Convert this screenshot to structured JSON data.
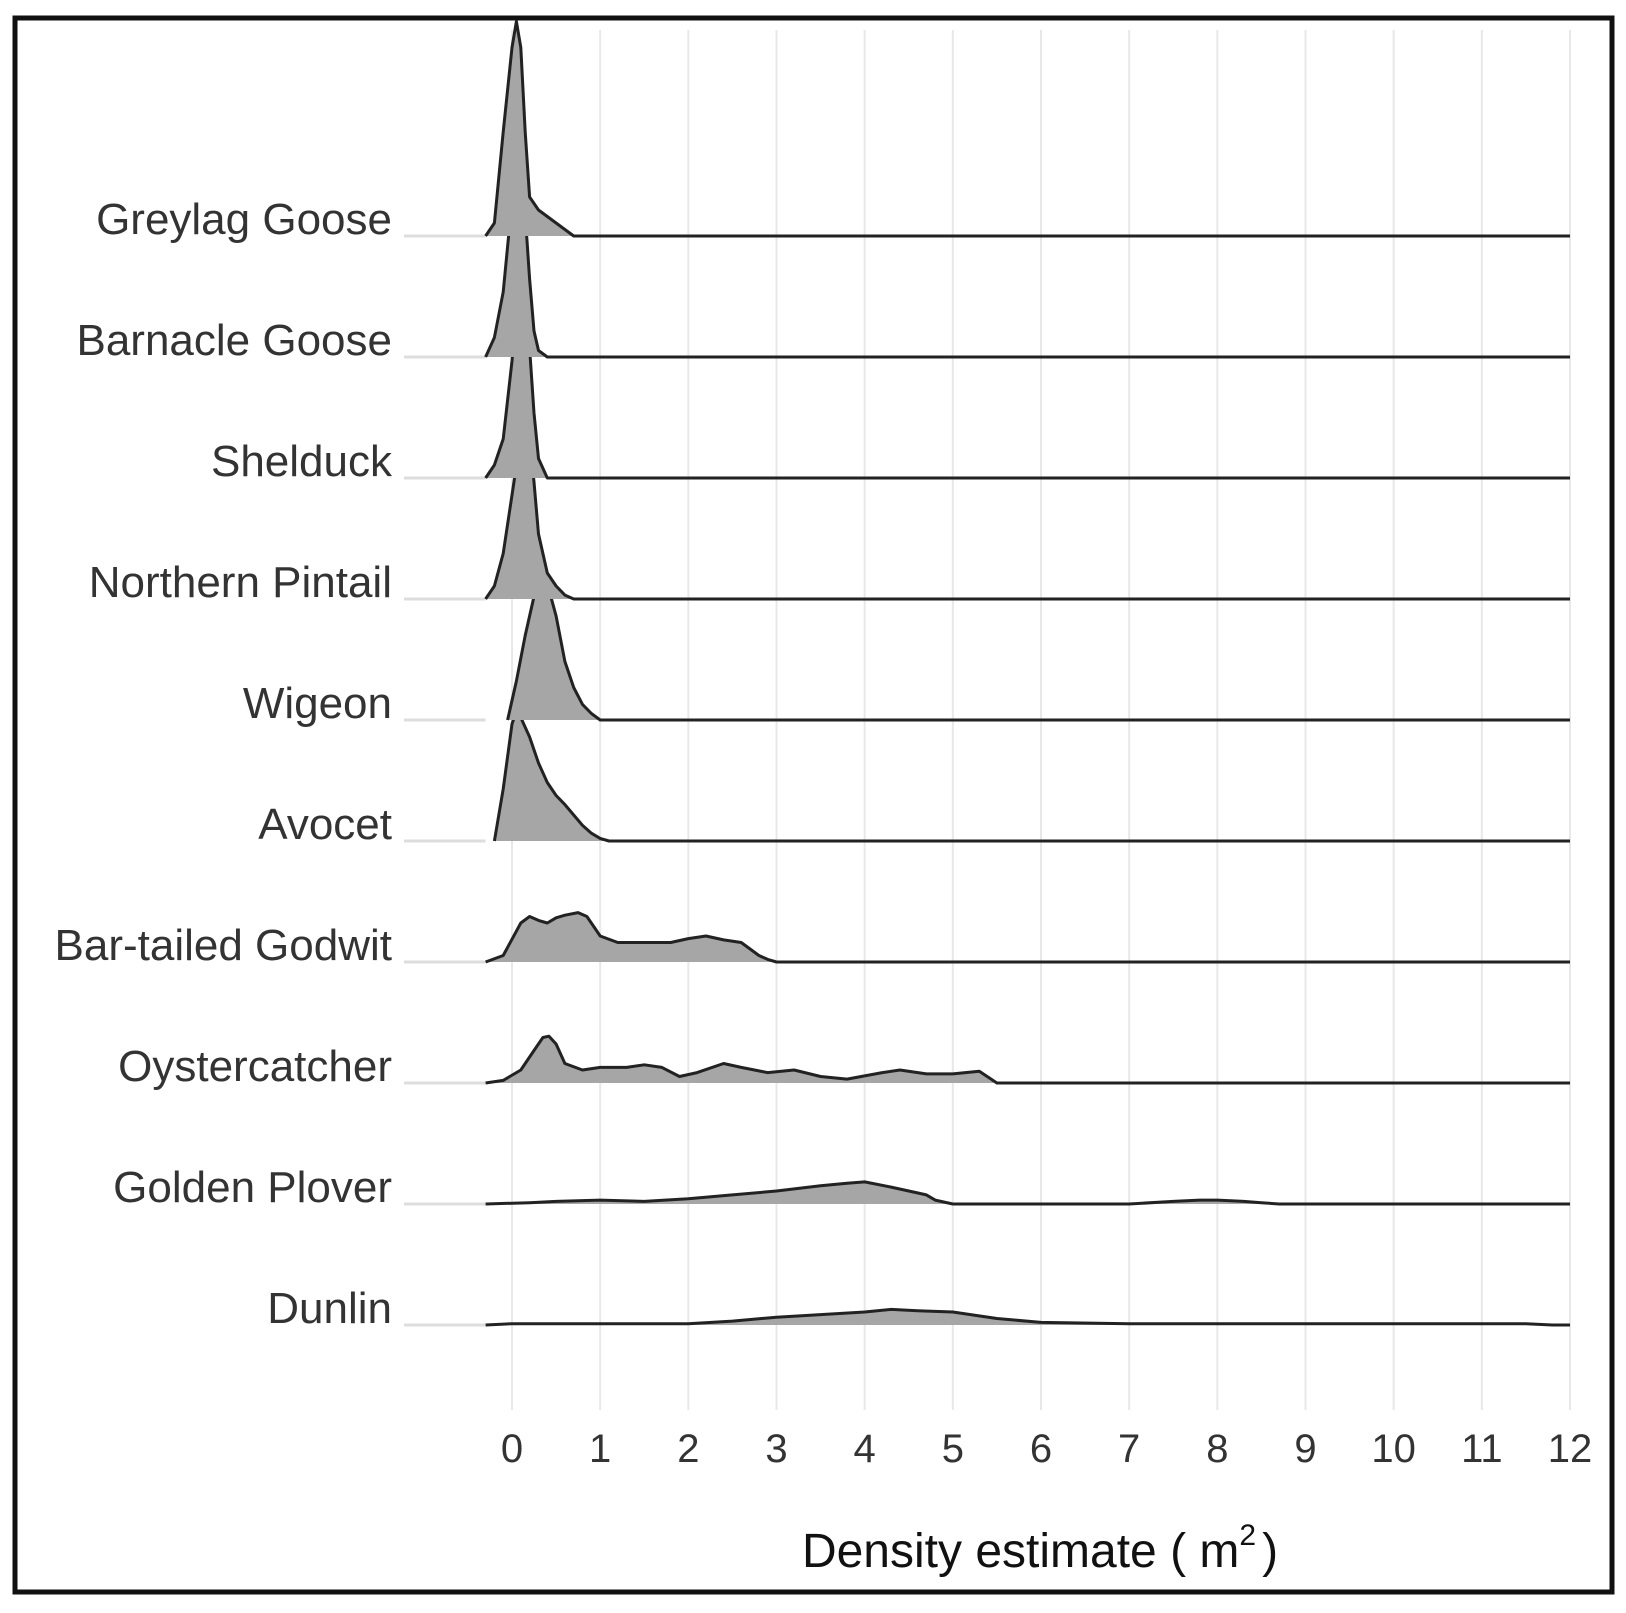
{
  "chart_data": {
    "type": "area",
    "subtype": "ridgeline",
    "title": "",
    "xlabel": "Density estimate ( m",
    "xlabel_superscript": "2",
    "xlabel_close": ")",
    "ylabel": "",
    "xlim": [
      -0.3,
      12
    ],
    "x_ticks": [
      0,
      1,
      2,
      3,
      4,
      5,
      6,
      7,
      8,
      9,
      10,
      11,
      12
    ],
    "x_tick_labels": [
      "0",
      "1",
      "2",
      "3",
      "4",
      "5",
      "6",
      "7",
      "8",
      "9",
      "10",
      "11",
      "12"
    ],
    "grid": "vertical",
    "legend": "none",
    "colors": {
      "fill": "#a6a6a6",
      "line": "#222222",
      "grid": "#e8e8e8",
      "baseline_left": "#dddddd",
      "frame": "#111111"
    },
    "categories": [
      "Greylag Goose",
      "Barnacle Goose",
      "Shelduck",
      "Northern Pintail",
      "Wigeon",
      "Avocet",
      "Bar-tailed Godwit",
      "Oystercatcher",
      "Golden Plover",
      "Dunlin"
    ],
    "series": [
      {
        "name": "Greylag Goose",
        "x": [
          -0.3,
          -0.2,
          -0.1,
          0.0,
          0.05,
          0.1,
          0.15,
          0.2,
          0.3,
          0.4,
          0.5,
          0.6,
          0.7,
          12
        ],
        "density": [
          0,
          0.1,
          0.8,
          1.45,
          1.65,
          1.45,
          0.8,
          0.3,
          0.2,
          0.15,
          0.1,
          0.05,
          0,
          0
        ]
      },
      {
        "name": "Barnacle Goose",
        "x": [
          -0.3,
          -0.2,
          -0.1,
          0.0,
          0.05,
          0.1,
          0.15,
          0.2,
          0.25,
          0.3,
          0.4,
          12
        ],
        "density": [
          0,
          0.15,
          0.5,
          1.2,
          1.55,
          1.45,
          1.1,
          0.6,
          0.2,
          0.05,
          0,
          0
        ]
      },
      {
        "name": "Shelduck",
        "x": [
          -0.3,
          -0.2,
          -0.1,
          0.0,
          0.05,
          0.12,
          0.2,
          0.25,
          0.3,
          0.4,
          12
        ],
        "density": [
          0,
          0.1,
          0.3,
          0.9,
          1.3,
          1.5,
          1.0,
          0.5,
          0.15,
          0,
          0
        ]
      },
      {
        "name": "Northern Pintail",
        "x": [
          -0.3,
          -0.2,
          -0.1,
          0.0,
          0.1,
          0.15,
          0.2,
          0.25,
          0.3,
          0.4,
          0.5,
          0.6,
          0.7,
          12
        ],
        "density": [
          0,
          0.1,
          0.35,
          0.8,
          1.25,
          1.35,
          1.25,
          0.9,
          0.5,
          0.2,
          0.1,
          0.03,
          0,
          0
        ]
      },
      {
        "name": "Wigeon",
        "x": [
          -0.05,
          0.05,
          0.15,
          0.25,
          0.3,
          0.35,
          0.4,
          0.5,
          0.6,
          0.7,
          0.8,
          0.9,
          1.0,
          12
        ],
        "density": [
          0,
          0.3,
          0.65,
          0.95,
          1.05,
          1.1,
          1.05,
          0.8,
          0.45,
          0.25,
          0.12,
          0.05,
          0,
          0
        ]
      },
      {
        "name": "Avocet",
        "x": [
          -0.2,
          -0.1,
          0.0,
          0.05,
          0.1,
          0.2,
          0.3,
          0.4,
          0.5,
          0.6,
          0.7,
          0.8,
          0.9,
          1.0,
          1.1,
          12
        ],
        "density": [
          0,
          0.4,
          0.9,
          1.0,
          0.95,
          0.8,
          0.6,
          0.45,
          0.35,
          0.28,
          0.2,
          0.12,
          0.06,
          0.02,
          0,
          0
        ]
      },
      {
        "name": "Bar-tailed Godwit",
        "x": [
          -0.3,
          -0.1,
          0.1,
          0.2,
          0.3,
          0.4,
          0.5,
          0.6,
          0.75,
          0.85,
          1.0,
          1.2,
          1.5,
          1.8,
          2.0,
          2.2,
          2.4,
          2.6,
          2.7,
          2.8,
          2.9,
          3.0,
          12
        ],
        "density": [
          0,
          0.05,
          0.3,
          0.35,
          0.32,
          0.3,
          0.34,
          0.36,
          0.38,
          0.35,
          0.2,
          0.15,
          0.15,
          0.15,
          0.18,
          0.2,
          0.17,
          0.15,
          0.1,
          0.05,
          0.02,
          0,
          0
        ]
      },
      {
        "name": "Oystercatcher",
        "x": [
          -0.3,
          -0.1,
          0.1,
          0.25,
          0.35,
          0.42,
          0.5,
          0.6,
          0.8,
          1.0,
          1.3,
          1.5,
          1.7,
          1.9,
          2.1,
          2.4,
          2.6,
          2.9,
          3.2,
          3.5,
          3.8,
          4.2,
          4.4,
          4.7,
          5.0,
          5.3,
          5.5,
          12
        ],
        "density": [
          0,
          0.02,
          0.1,
          0.25,
          0.35,
          0.36,
          0.3,
          0.15,
          0.1,
          0.12,
          0.12,
          0.14,
          0.12,
          0.05,
          0.08,
          0.15,
          0.12,
          0.08,
          0.1,
          0.05,
          0.03,
          0.08,
          0.1,
          0.07,
          0.07,
          0.09,
          0,
          0
        ]
      },
      {
        "name": "Golden Plover",
        "x": [
          -0.3,
          0.2,
          0.5,
          1.0,
          1.5,
          2.0,
          2.5,
          3.0,
          3.5,
          3.8,
          4.0,
          4.3,
          4.5,
          4.7,
          4.8,
          5.0,
          6.0,
          7.0,
          7.5,
          7.8,
          8.0,
          8.3,
          8.5,
          8.7,
          12
        ],
        "density": [
          0,
          0.01,
          0.02,
          0.03,
          0.02,
          0.04,
          0.07,
          0.1,
          0.14,
          0.16,
          0.17,
          0.13,
          0.1,
          0.07,
          0.03,
          0,
          0,
          0,
          0.02,
          0.03,
          0.03,
          0.02,
          0.01,
          0,
          0
        ]
      },
      {
        "name": "Dunlin",
        "x": [
          -0.3,
          0.0,
          1.0,
          2.0,
          2.5,
          3.0,
          3.5,
          4.0,
          4.3,
          4.6,
          5.0,
          5.5,
          6.0,
          7.0,
          8.0,
          9.0,
          10.0,
          11.0,
          11.5,
          11.8,
          12
        ],
        "density": [
          0,
          0.01,
          0.01,
          0.01,
          0.03,
          0.06,
          0.08,
          0.1,
          0.12,
          0.11,
          0.1,
          0.05,
          0.02,
          0.01,
          0.01,
          0.01,
          0.01,
          0.01,
          0.01,
          0,
          0
        ]
      }
    ]
  }
}
